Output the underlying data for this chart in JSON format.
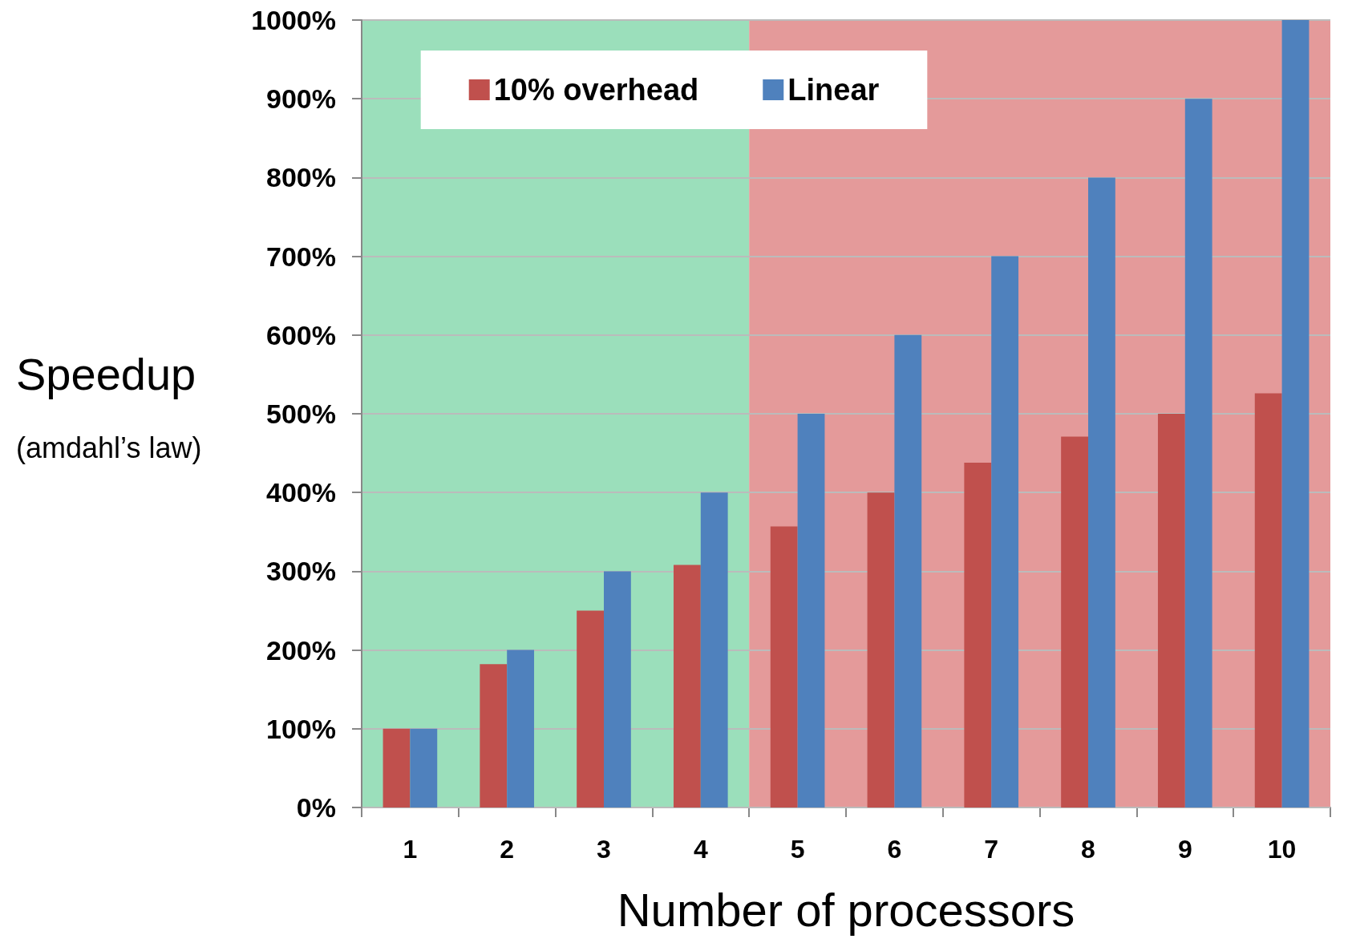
{
  "chart_data": {
    "type": "bar",
    "xlabel": "Number of processors",
    "ylabel": "Speedup",
    "annotations": [
      "(amdahl’s law)"
    ],
    "categories": [
      "1",
      "2",
      "3",
      "4",
      "5",
      "6",
      "7",
      "8",
      "9",
      "10"
    ],
    "series": [
      {
        "name": "10% overhead",
        "color": "#c0504d",
        "values": [
          100,
          182,
          250,
          308,
          357,
          400,
          438,
          471,
          500,
          526
        ]
      },
      {
        "name": "Linear",
        "color": "#4f81bd",
        "values": [
          100,
          200,
          300,
          400,
          500,
          600,
          700,
          800,
          900,
          1000
        ]
      }
    ],
    "ylim": [
      0,
      1000
    ],
    "yticks": [
      {
        "value": 0,
        "label": "0%"
      },
      {
        "value": 100,
        "label": "100%"
      },
      {
        "value": 200,
        "label": "200%"
      },
      {
        "value": 300,
        "label": "300%"
      },
      {
        "value": 400,
        "label": "400%"
      },
      {
        "value": 500,
        "label": "500%"
      },
      {
        "value": 600,
        "label": "600%"
      },
      {
        "value": 700,
        "label": "700%"
      },
      {
        "value": 800,
        "label": "800%"
      },
      {
        "value": 900,
        "label": "900%"
      },
      {
        "value": 1000,
        "label": "1000%"
      }
    ],
    "bands": [
      {
        "axis": "x",
        "from": "1",
        "to": "4",
        "color": "#9bdfbb"
      },
      {
        "axis": "x",
        "from": "5",
        "to": "10",
        "color": "#e49a9a"
      }
    ],
    "grid": "y",
    "legend": "top"
  }
}
